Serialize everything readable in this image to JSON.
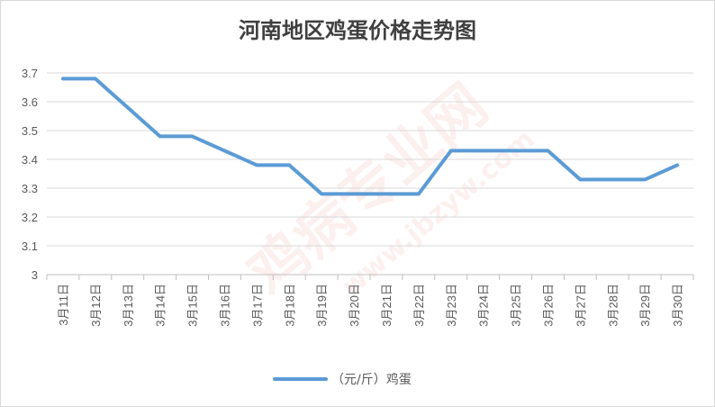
{
  "chart_data": {
    "type": "line",
    "title": "河南地区鸡蛋价格走势图",
    "categories": [
      "3月11日",
      "3月12日",
      "3月13日",
      "3月14日",
      "3月15日",
      "3月16日",
      "3月17日",
      "3月18日",
      "3月19日",
      "3月20日",
      "3月21日",
      "3月22日",
      "3月23日",
      "3月24日",
      "3月25日",
      "3月26日",
      "3月27日",
      "3月28日",
      "3月29日",
      "3月30日"
    ],
    "series": [
      {
        "name": "（元/斤）鸡蛋",
        "color": "#5b9bd5",
        "values": [
          3.68,
          3.68,
          3.58,
          3.48,
          3.48,
          3.43,
          3.38,
          3.38,
          3.28,
          3.28,
          3.28,
          3.28,
          3.43,
          3.43,
          3.43,
          3.43,
          3.33,
          3.33,
          3.33,
          3.38
        ]
      }
    ],
    "ylim": [
      3,
      3.7
    ],
    "yticks": [
      "3",
      "3.1",
      "3.2",
      "3.3",
      "3.4",
      "3.5",
      "3.6",
      "3.7"
    ],
    "grid": true,
    "legend": "bottom"
  },
  "watermark": {
    "text_cn": "鸡病专业网",
    "text_url": "www.jbzyw.com"
  }
}
